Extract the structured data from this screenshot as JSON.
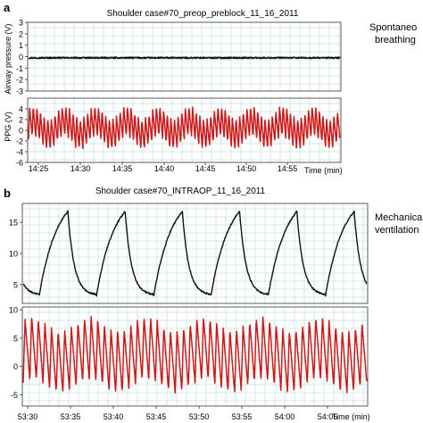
{
  "figure": {
    "panel_a_letter": "a",
    "panel_b_letter": "b"
  },
  "chart_data": [
    {
      "type": "line",
      "panel": "a",
      "title": "Shoulder case#70_preop_preblock_11_16_2011",
      "side_label_lines": [
        "Spontaneo",
        "breathing"
      ],
      "xlabel": "Time (min)",
      "x_ticks": [
        "14:25",
        "14:30",
        "14:35",
        "14:40",
        "14:45",
        "14:50",
        "14:55"
      ],
      "subplots": [
        {
          "ylabel": "Airway pressure (V)",
          "ylim": [
            -3,
            3
          ],
          "y_ticks": [
            3,
            2,
            1,
            0,
            -1,
            -2,
            -3
          ],
          "grid": true,
          "series": [
            {
              "color": "#111111",
              "pattern": "flat",
              "level": -0.1,
              "noise": 0.12,
              "cycles": 160
            }
          ]
        },
        {
          "ylabel": "PPG (V)",
          "ylim": [
            -6,
            6
          ],
          "y_ticks": [
            4,
            2,
            0,
            -2,
            -4,
            -6
          ],
          "grid": true,
          "series": [
            {
              "color": "#cc1a1a",
              "pattern": "oscillating",
              "level": 0.5,
              "amplitude": 2.8,
              "cycles": 86,
              "modulation_amplitude": 1.2,
              "modulation_cycles": 10
            }
          ]
        }
      ]
    },
    {
      "type": "line",
      "panel": "b",
      "title": "Shoulder case#70_INTRAOP_11_16_2011",
      "side_label_lines": [
        "Mechanical",
        "ventilation"
      ],
      "xlabel": "Time (min)",
      "x_ticks": [
        "53:30",
        "53:35",
        "53:40",
        "53:45",
        "53:50",
        "53:55",
        "54:00",
        "54:05"
      ],
      "subplots": [
        {
          "ylabel": "",
          "ylim": [
            2,
            18
          ],
          "y_ticks": [
            15,
            10,
            5
          ],
          "grid": true,
          "series": [
            {
              "color": "#111111",
              "pattern": "ventilator",
              "baseline": 3.3,
              "peak": 17.0,
              "cycles": 6
            }
          ]
        },
        {
          "ylabel": "",
          "ylim": [
            -7,
            10.5
          ],
          "y_ticks": [
            10,
            5,
            0,
            -5
          ],
          "grid": true,
          "series": [
            {
              "color": "#cc1a1a",
              "pattern": "oscillating",
              "level": 2.0,
              "amplitude": 5.5,
              "cycles": 52,
              "modulation_amplitude": 1.2,
              "modulation_cycles": 6
            }
          ]
        }
      ]
    }
  ]
}
